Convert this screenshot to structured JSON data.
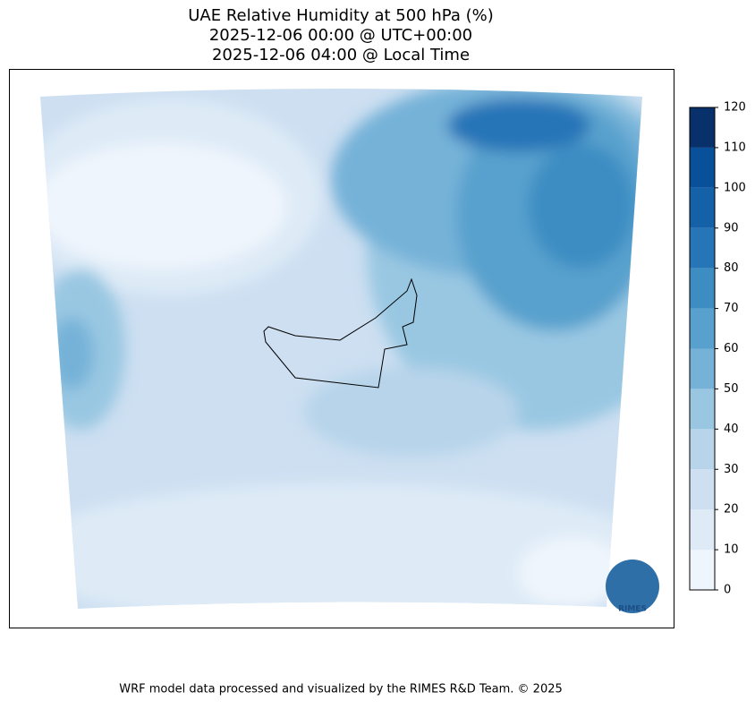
{
  "title": [
    "UAE Relative Humidity at 500 hPa (%)",
    "2025-12-06 00:00 @ UTC+00:00",
    "2025-12-06 04:00 @ Local Time"
  ],
  "colorbar": {
    "lim": [
      0,
      120
    ],
    "ticks": [
      0,
      10,
      20,
      30,
      40,
      50,
      60,
      70,
      80,
      90,
      100,
      110,
      120
    ],
    "colors": [
      "#eff5fc",
      "#deebf7",
      "#cddff1",
      "#b7d4ea",
      "#99c7e2",
      "#76b2d8",
      "#58a1ce",
      "#3d8dc3",
      "#2575b7",
      "#1461a8",
      "#08509a",
      "#08306b"
    ]
  },
  "logo": "RIMES",
  "footer": "WRF model data processed and visualized by the RIMES R&D Team. © 2025"
}
